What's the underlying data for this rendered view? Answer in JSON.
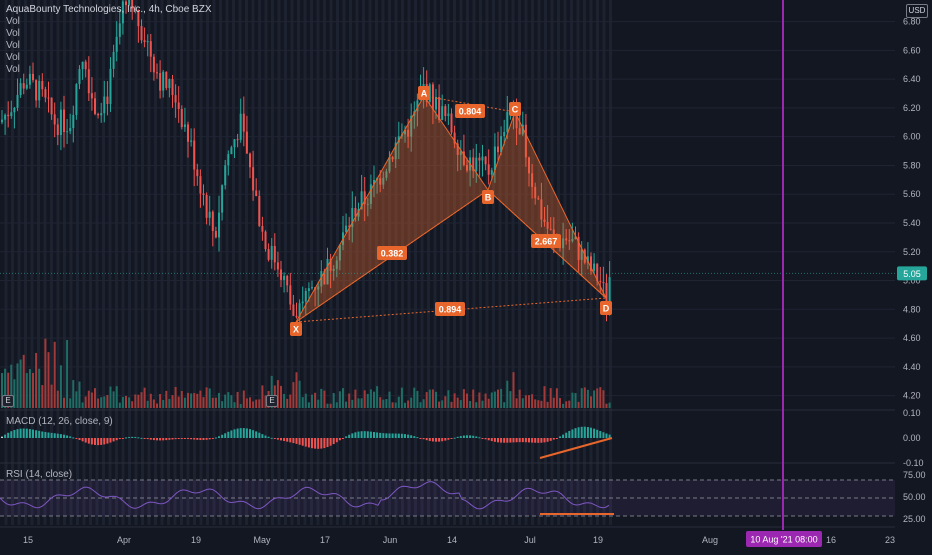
{
  "symbol": {
    "title": "AquaBounty Technologies, Inc., 4h, Cboe BZX",
    "sub_indicators": [
      "Vol",
      "Vol",
      "Vol",
      "Vol",
      "Vol"
    ]
  },
  "currency_badge": "USD",
  "price": {
    "current": "5.05",
    "ticks": [
      "6.80",
      "6.60",
      "6.40",
      "6.20",
      "6.00",
      "5.80",
      "5.60",
      "5.40",
      "5.20",
      "5.00",
      "4.80",
      "4.60",
      "4.40",
      "4.20"
    ]
  },
  "macd": {
    "label": "MACD (12, 26, close, 9)",
    "ticks": [
      "0.10",
      "0.00",
      "-0.10"
    ]
  },
  "rsi": {
    "label": "RSI (14, close)",
    "ticks": [
      "75.00",
      "50.00",
      "25.00"
    ]
  },
  "time_axis": {
    "labels": [
      "15",
      "Apr",
      "19",
      "May",
      "17",
      "Jun",
      "14",
      "Jul",
      "19",
      "Aug",
      "16",
      "23"
    ],
    "crosshair_label": "10 Aug '21  08:00"
  },
  "pattern": {
    "points": [
      "X",
      "A",
      "B",
      "C",
      "D"
    ],
    "ratios": {
      "xb": "0.382",
      "ac": "0.804",
      "bd": "2.667",
      "xd": "0.894"
    }
  },
  "event_markers": [
    "E",
    "E"
  ],
  "colors": {
    "background": "#131722",
    "bull": "#26a69a",
    "bear": "#ef5350",
    "pattern": "#e8662b",
    "crosshair": "#9c27b0",
    "price_badge": "#26a69a"
  },
  "chart_data": {
    "type": "candlestick",
    "title": "AquaBounty Technologies, Inc., 4h, Cboe BZX",
    "ylim": [
      4.1,
      6.95
    ],
    "current_price": 5.05,
    "harmonic_pattern": {
      "X": {
        "date": "2021-05-10",
        "price": 4.67
      },
      "A": {
        "date": "2021-06-09",
        "price": 6.38
      },
      "B": {
        "date": "2021-06-17",
        "price": 5.73
      },
      "C": {
        "date": "2021-06-29",
        "price": 6.27
      },
      "D": {
        "date": "2021-07-20",
        "price": 4.84
      }
    },
    "macd": {
      "ylim": [
        -0.15,
        0.15
      ]
    },
    "rsi": {
      "ylim": [
        20,
        80
      ],
      "levels": [
        70,
        50,
        30
      ]
    }
  }
}
